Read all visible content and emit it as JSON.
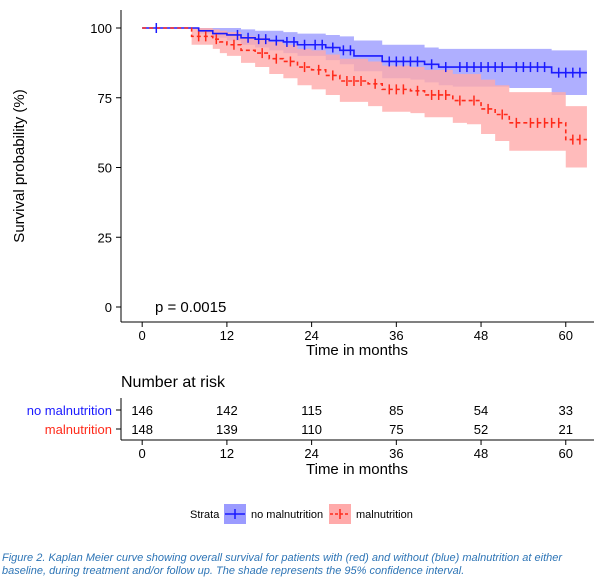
{
  "chart_data": {
    "type": "line",
    "subtype": "kaplan-meier",
    "xlabel": "Time in months",
    "ylabel": "Survival probability (%)",
    "xlim": [
      -3,
      64
    ],
    "ylim": [
      0,
      100
    ],
    "xticks": [
      0,
      12,
      24,
      36,
      48,
      60
    ],
    "yticks": [
      0,
      25,
      50,
      75,
      100
    ],
    "annotation": "p = 0.0015",
    "grid": false,
    "legend": {
      "position": "bottom",
      "title": "Strata"
    },
    "series": [
      {
        "name": "no malnutrition",
        "color": "#1a1aff",
        "band_color": "#9b9bff",
        "line_style": "solid",
        "steps": [
          [
            0,
            100
          ],
          [
            8,
            99
          ],
          [
            10,
            98
          ],
          [
            12,
            97.5
          ],
          [
            14,
            96.5
          ],
          [
            16,
            96
          ],
          [
            18,
            95.5
          ],
          [
            20,
            95
          ],
          [
            22,
            94
          ],
          [
            26,
            93
          ],
          [
            28,
            92
          ],
          [
            30,
            90
          ],
          [
            34,
            88
          ],
          [
            38,
            88
          ],
          [
            40,
            87
          ],
          [
            42,
            86
          ],
          [
            44,
            86
          ],
          [
            52,
            86
          ],
          [
            58,
            84
          ],
          [
            63,
            84
          ]
        ],
        "lower": [
          [
            0,
            100
          ],
          [
            8,
            98
          ],
          [
            10,
            96.5
          ],
          [
            12,
            95.5
          ],
          [
            14,
            94
          ],
          [
            16,
            93
          ],
          [
            18,
            92
          ],
          [
            20,
            91
          ],
          [
            22,
            90
          ],
          [
            26,
            88.5
          ],
          [
            28,
            87
          ],
          [
            30,
            84.5
          ],
          [
            34,
            82
          ],
          [
            38,
            81.5
          ],
          [
            40,
            80.5
          ],
          [
            42,
            79.5
          ],
          [
            44,
            79
          ],
          [
            52,
            78.5
          ],
          [
            58,
            76
          ],
          [
            63,
            76
          ]
        ],
        "upper": [
          [
            0,
            100
          ],
          [
            8,
            100
          ],
          [
            10,
            100
          ],
          [
            12,
            100
          ],
          [
            14,
            99.5
          ],
          [
            16,
            99
          ],
          [
            18,
            99
          ],
          [
            20,
            98.5
          ],
          [
            22,
            98
          ],
          [
            26,
            97.5
          ],
          [
            28,
            97
          ],
          [
            30,
            95.5
          ],
          [
            34,
            94
          ],
          [
            38,
            94
          ],
          [
            40,
            93
          ],
          [
            42,
            92.5
          ],
          [
            44,
            92.5
          ],
          [
            52,
            92.5
          ],
          [
            58,
            92
          ],
          [
            63,
            92
          ]
        ],
        "censor_x": [
          2,
          13.5,
          15,
          16.5,
          17.5,
          19,
          20.5,
          21.5,
          23,
          24.5,
          25.5,
          27,
          28.5,
          29.5,
          35,
          36,
          37,
          38,
          39,
          41,
          43,
          45,
          46,
          47,
          48,
          49,
          50,
          51,
          53,
          54,
          55,
          56,
          57,
          59,
          60,
          61,
          62
        ]
      },
      {
        "name": "malnutrition",
        "color": "#ff2a1a",
        "band_color": "#ffaaaa",
        "line_style": "dashed",
        "steps": [
          [
            0,
            100
          ],
          [
            7,
            97
          ],
          [
            10,
            96
          ],
          [
            11,
            95
          ],
          [
            12,
            94
          ],
          [
            14,
            92
          ],
          [
            16,
            91
          ],
          [
            18,
            89
          ],
          [
            20,
            88
          ],
          [
            22,
            86
          ],
          [
            24,
            85
          ],
          [
            26,
            83
          ],
          [
            28,
            81
          ],
          [
            32,
            80
          ],
          [
            34,
            78
          ],
          [
            38,
            77.5
          ],
          [
            40,
            76
          ],
          [
            44,
            74
          ],
          [
            46,
            74
          ],
          [
            48,
            71
          ],
          [
            50,
            69
          ],
          [
            52,
            66
          ],
          [
            60,
            60
          ],
          [
            63,
            60
          ]
        ],
        "lower": [
          [
            0,
            100
          ],
          [
            7,
            94
          ],
          [
            10,
            92.5
          ],
          [
            11,
            91
          ],
          [
            12,
            90
          ],
          [
            14,
            87.5
          ],
          [
            16,
            86
          ],
          [
            18,
            83.5
          ],
          [
            20,
            82
          ],
          [
            22,
            79.5
          ],
          [
            24,
            78
          ],
          [
            26,
            76
          ],
          [
            28,
            73.5
          ],
          [
            32,
            72
          ],
          [
            34,
            70
          ],
          [
            38,
            69.5
          ],
          [
            40,
            68
          ],
          [
            44,
            66
          ],
          [
            46,
            65.5
          ],
          [
            48,
            62
          ],
          [
            50,
            59.5
          ],
          [
            52,
            56
          ],
          [
            60,
            50
          ],
          [
            63,
            50
          ]
        ],
        "upper": [
          [
            0,
            100
          ],
          [
            7,
            100
          ],
          [
            10,
            99.5
          ],
          [
            11,
            99
          ],
          [
            12,
            98.5
          ],
          [
            14,
            97
          ],
          [
            16,
            96.5
          ],
          [
            18,
            95
          ],
          [
            20,
            94
          ],
          [
            22,
            92.5
          ],
          [
            24,
            92
          ],
          [
            26,
            90.5
          ],
          [
            28,
            89
          ],
          [
            32,
            88
          ],
          [
            34,
            86.5
          ],
          [
            38,
            86
          ],
          [
            40,
            85
          ],
          [
            44,
            83.5
          ],
          [
            46,
            83.5
          ],
          [
            48,
            81.5
          ],
          [
            50,
            79.5
          ],
          [
            52,
            77
          ],
          [
            60,
            72
          ],
          [
            63,
            72
          ]
        ],
        "censor_x": [
          8,
          9,
          10.5,
          13,
          17,
          19,
          21,
          23,
          25,
          27,
          29,
          30,
          31,
          33,
          35,
          36,
          37,
          39,
          41,
          42,
          43,
          45,
          47,
          49,
          51,
          53,
          55,
          56,
          57,
          58,
          59,
          61,
          62
        ]
      }
    ],
    "risk_table": {
      "title": "Number at risk",
      "xlabel": "Time in months",
      "times": [
        0,
        12,
        24,
        36,
        48,
        60
      ],
      "rows": [
        {
          "label": "no malnutrition",
          "color": "#1a1aff",
          "counts": [
            146,
            142,
            115,
            85,
            54,
            33
          ]
        },
        {
          "label": "malnutrition",
          "color": "#ff2a1a",
          "counts": [
            148,
            139,
            110,
            75,
            52,
            21
          ]
        }
      ]
    }
  },
  "caption": "Figure 2. Kaplan Meier curve showing overall survival for patients with (red) and without (blue) malnutrition at either baseline, during treatment and/or follow up. The shade represents the 95% confidence interval."
}
